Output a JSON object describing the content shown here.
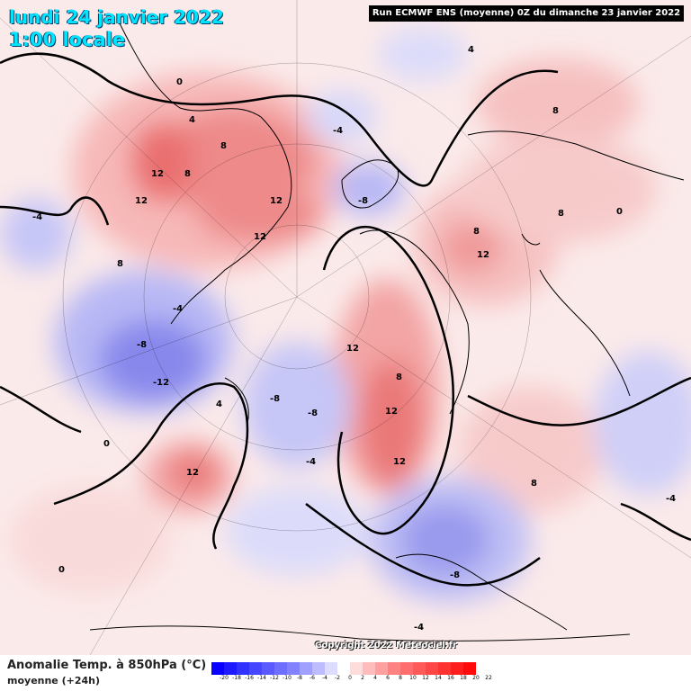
{
  "header": {
    "date": "lundi 24 janvier 2022",
    "time": "1:00 locale",
    "run": "Run ECMWF ENS (moyenne) 0Z du dimanche 23 janvier 2022"
  },
  "footer": {
    "param_title": "Anomalie Temp. à 850hPa (°C)",
    "param_sub": "moyenne  (+24h)",
    "copyright": "Copyright 2022 Meteociel.fr"
  },
  "legend": {
    "ticks": [
      "-20",
      "-18",
      "-16",
      "-14",
      "-12",
      "-10",
      "-8",
      "-6",
      "-4",
      "-2",
      "0",
      "2",
      "4",
      "6",
      "8",
      "10",
      "12",
      "14",
      "16",
      "18",
      "20",
      "22"
    ],
    "colors": [
      "#0a00ff",
      "#1e1aff",
      "#3232ff",
      "#4646ff",
      "#5a5aff",
      "#6e6eff",
      "#8282ff",
      "#a0a0ff",
      "#bcbcff",
      "#dcdcff",
      "#ffffff",
      "#ffdcdc",
      "#ffbcbc",
      "#ffa0a0",
      "#ff8282",
      "#ff6e6e",
      "#ff5a5a",
      "#ff4646",
      "#ff3232",
      "#ff1e1e",
      "#ff0a0a"
    ]
  },
  "map": {
    "labels": [
      {
        "id": "l1",
        "text": "12"
      },
      {
        "id": "l2",
        "text": "8"
      },
      {
        "id": "l3",
        "text": "12"
      },
      {
        "id": "l4",
        "text": "12"
      },
      {
        "id": "l5",
        "text": "12"
      },
      {
        "id": "l6",
        "text": "8"
      },
      {
        "id": "l7",
        "text": "4"
      },
      {
        "id": "l8",
        "text": "0"
      },
      {
        "id": "l9",
        "text": "-8"
      },
      {
        "id": "l10",
        "text": "-12"
      },
      {
        "id": "l11",
        "text": "-4"
      },
      {
        "id": "l12",
        "text": "12"
      },
      {
        "id": "l13",
        "text": "8"
      },
      {
        "id": "l14",
        "text": "-8"
      },
      {
        "id": "l15",
        "text": "-8"
      },
      {
        "id": "l16",
        "text": "-4"
      },
      {
        "id": "l17",
        "text": "12"
      },
      {
        "id": "l18",
        "text": "12"
      },
      {
        "id": "l19",
        "text": "12"
      },
      {
        "id": "l20",
        "text": "8"
      },
      {
        "id": "l21",
        "text": "-8"
      },
      {
        "id": "l22",
        "text": "-4"
      },
      {
        "id": "l23",
        "text": "12"
      },
      {
        "id": "l24",
        "text": "8"
      },
      {
        "id": "l25",
        "text": "8"
      },
      {
        "id": "l26",
        "text": "8"
      },
      {
        "id": "l27",
        "text": "4"
      },
      {
        "id": "l28",
        "text": "-4"
      },
      {
        "id": "l29",
        "text": "0"
      },
      {
        "id": "l30",
        "text": "0"
      },
      {
        "id": "l31",
        "text": "4"
      },
      {
        "id": "l32",
        "text": "-8"
      },
      {
        "id": "l33",
        "text": "8"
      },
      {
        "id": "l34",
        "text": "-4"
      },
      {
        "id": "l35",
        "text": "0"
      },
      {
        "id": "l36",
        "text": "-4"
      }
    ]
  }
}
